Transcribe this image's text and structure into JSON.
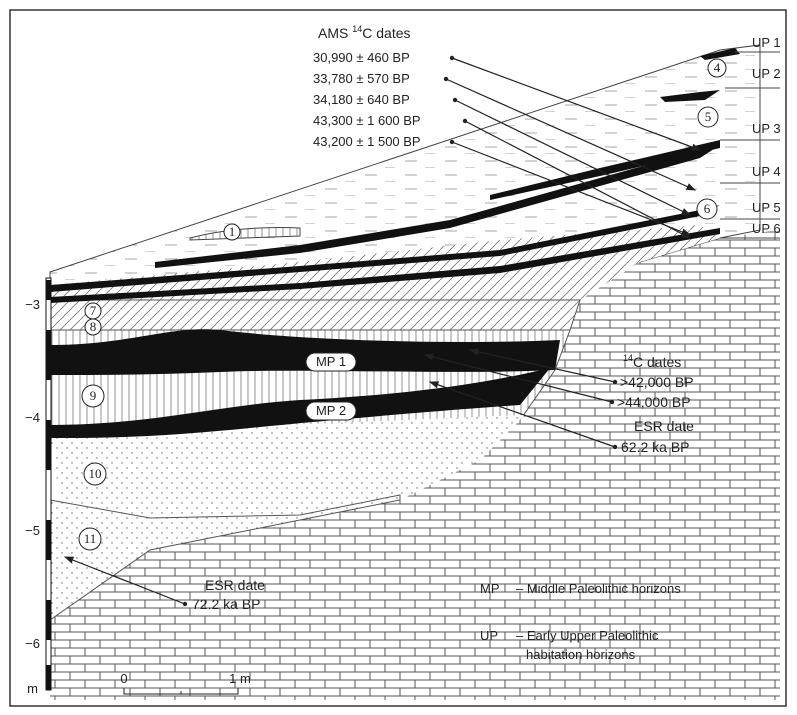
{
  "header": {
    "title": {
      "pre": "AMS",
      "sup": "14",
      "post": "C dates"
    },
    "dates": [
      "30,990 ± 460 BP",
      "33,780 ± 570 BP",
      "34,180 ± 640 BP",
      "43,300 ± 1 600 BP",
      "43,200 ± 1 500 BP"
    ]
  },
  "up_labels": [
    "UP 1",
    "UP 2",
    "UP 3",
    "UP 4",
    "UP 5",
    "UP 6"
  ],
  "layers": [
    "1",
    "4",
    "5",
    "6",
    "7",
    "8",
    "9",
    "10",
    "11"
  ],
  "mp_labels": [
    "MP 1",
    "MP 2"
  ],
  "c14": {
    "title": {
      "sup": "14",
      "post": "C dates"
    },
    "dates": [
      ">42,000 BP",
      ">44,000 BP"
    ]
  },
  "esr_upper": {
    "title": "ESR date",
    "date": "62.2 ka BP"
  },
  "esr_lower": {
    "title": "ESR date",
    "date": "72.2 ka BP"
  },
  "depth": {
    "ticks": [
      "−3",
      "−4",
      "−5",
      "−6"
    ],
    "unit": "m"
  },
  "scale": {
    "start": "0",
    "end": "1 m"
  },
  "legend": [
    {
      "key": "MP",
      "text": "– Middle Paleolithic horizons"
    },
    {
      "key": "UP",
      "text": [
        "– Early Upper Paleolithic",
        "habitation horizons"
      ]
    }
  ]
}
